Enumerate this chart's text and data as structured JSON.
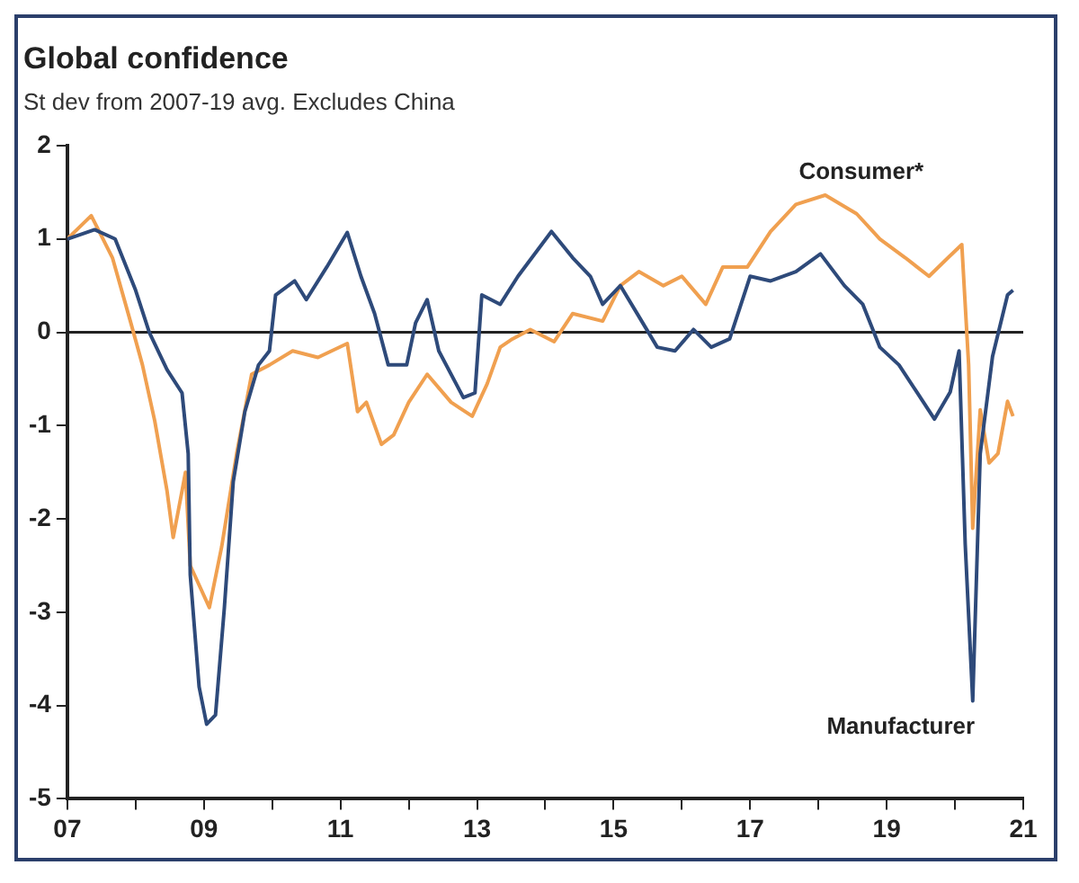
{
  "chart_data": {
    "type": "line",
    "title": "Global confidence",
    "subtitle": "St dev from 2007-19 avg. Excludes China",
    "xlim": [
      2007,
      2021
    ],
    "xticks": [
      {
        "value": 2007,
        "label": "07"
      },
      {
        "value": 2008,
        "label": null
      },
      {
        "value": 2009,
        "label": "09"
      },
      {
        "value": 2010,
        "label": null
      },
      {
        "value": 2011,
        "label": "11"
      },
      {
        "value": 2012,
        "label": null
      },
      {
        "value": 2013,
        "label": "13"
      },
      {
        "value": 2014,
        "label": null
      },
      {
        "value": 2015,
        "label": "15"
      },
      {
        "value": 2016,
        "label": null
      },
      {
        "value": 2017,
        "label": "17"
      },
      {
        "value": 2018,
        "label": null
      },
      {
        "value": 2019,
        "label": "19"
      },
      {
        "value": 2020,
        "label": null
      },
      {
        "value": 2021,
        "label": "21"
      }
    ],
    "ylim": [
      -5,
      2
    ],
    "yticks": [
      -5,
      -4,
      -3,
      -2,
      -1,
      0,
      1,
      2
    ],
    "grid": false,
    "legend": false,
    "marker": "none",
    "line_style": "solid",
    "ref_lines": [
      {
        "axis": "y",
        "value": 0,
        "color": "#222222"
      }
    ],
    "series": [
      {
        "name": "Manufacturer",
        "color": "#2e4a7a",
        "x": [
          2007,
          2007.4,
          2007.7,
          2008,
          2008.2,
          2008.46,
          2008.68,
          2008.77,
          2008.8,
          2008.93,
          2009.04,
          2009.17,
          2009.3,
          2009.43,
          2009.6,
          2009.8,
          2009.96,
          2010.05,
          2010.33,
          2010.5,
          2010.8,
          2011.1,
          2011.3,
          2011.5,
          2011.7,
          2011.97,
          2012.1,
          2012.27,
          2012.44,
          2012.8,
          2012.97,
          2013.07,
          2013.34,
          2013.6,
          2014.09,
          2014.4,
          2014.66,
          2014.84,
          2015.1,
          2015.37,
          2015.64,
          2015.9,
          2016.17,
          2016.43,
          2016.7,
          2017,
          2017.3,
          2017.67,
          2018.03,
          2018.38,
          2018.65,
          2018.9,
          2019.18,
          2019.44,
          2019.7,
          2019.93,
          2020.06,
          2020.15,
          2020.26,
          2020.37,
          2020.55,
          2020.77,
          2020.85
        ],
        "values": [
          1,
          1.1,
          1,
          0.45,
          0,
          -0.4,
          -0.65,
          -1.3,
          -2.6,
          -3.8,
          -4.2,
          -4.1,
          -2.95,
          -1.6,
          -0.85,
          -0.35,
          -0.2,
          0.4,
          0.55,
          0.35,
          0.7,
          1.07,
          0.6,
          0.2,
          -0.35,
          -0.35,
          0.1,
          0.35,
          -0.2,
          -0.7,
          -0.65,
          0.4,
          0.3,
          0.6,
          1.08,
          0.8,
          0.6,
          0.3,
          0.5,
          0.17,
          -0.16,
          -0.2,
          0.03,
          -0.16,
          -0.07,
          0.6,
          0.55,
          0.65,
          0.84,
          0.5,
          0.3,
          -0.16,
          -0.35,
          -0.64,
          -0.93,
          -0.64,
          -0.2,
          -2.27,
          -3.95,
          -1.3,
          -0.26,
          0.4,
          0.45
        ]
      },
      {
        "name": "Consumer*",
        "color": "#f0a050",
        "x": [
          2007,
          2007.35,
          2007.66,
          2007.93,
          2008.1,
          2008.28,
          2008.46,
          2008.55,
          2008.68,
          2008.73,
          2008.8,
          2009.08,
          2009.26,
          2009.48,
          2009.7,
          2009.96,
          2010.3,
          2010.67,
          2011.1,
          2011.25,
          2011.38,
          2011.6,
          2011.78,
          2012,
          2012.27,
          2012.62,
          2012.93,
          2013.15,
          2013.34,
          2013.5,
          2013.78,
          2014.13,
          2014.4,
          2014.84,
          2015.1,
          2015.37,
          2015.73,
          2016,
          2016.35,
          2016.6,
          2016.96,
          2017.3,
          2017.67,
          2018.1,
          2018.56,
          2018.9,
          2019.27,
          2019.62,
          2019.9,
          2020.1,
          2020.2,
          2020.26,
          2020.37,
          2020.5,
          2020.63,
          2020.77,
          2020.85
        ],
        "values": [
          1,
          1.25,
          0.8,
          0.1,
          -0.35,
          -0.95,
          -1.7,
          -2.2,
          -1.7,
          -1.5,
          -2.5,
          -2.95,
          -2.3,
          -1.3,
          -0.45,
          -0.35,
          -0.2,
          -0.27,
          -0.12,
          -0.85,
          -0.75,
          -1.2,
          -1.1,
          -0.75,
          -0.45,
          -0.75,
          -0.9,
          -0.55,
          -0.16,
          -0.08,
          0.03,
          -0.1,
          0.2,
          0.12,
          0.5,
          0.65,
          0.5,
          0.6,
          0.3,
          0.7,
          0.7,
          1.08,
          1.37,
          1.47,
          1.27,
          1,
          0.8,
          0.6,
          0.8,
          0.94,
          -0.35,
          -2.1,
          -0.83,
          -1.4,
          -1.3,
          -0.74,
          -0.9
        ]
      }
    ]
  }
}
